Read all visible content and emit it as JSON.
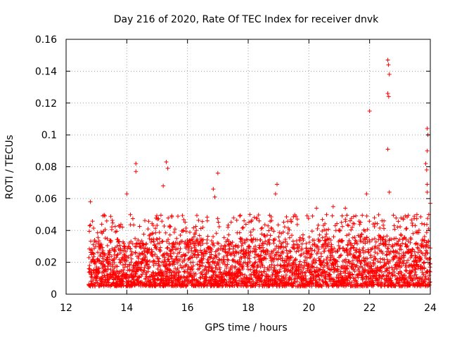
{
  "chart_data": {
    "type": "scatter",
    "title": "Day 216 of 2020, Rate Of TEC Index for receiver dnvk",
    "xlabel": "GPS time / hours",
    "ylabel": "ROTI / TECUs",
    "xlim": [
      12,
      24
    ],
    "ylim": [
      0,
      0.16
    ],
    "xticks": [
      12,
      14,
      16,
      18,
      20,
      22,
      24
    ],
    "xtick_labels": [
      "12",
      "14",
      "16",
      "18",
      "20",
      "22",
      "24"
    ],
    "yticks": [
      0,
      0.02,
      0.04,
      0.06,
      0.08,
      0.1,
      0.12,
      0.14,
      0.16
    ],
    "ytick_labels": [
      "0",
      "0.02",
      "0.04",
      "0.06",
      "0.08",
      "0.1",
      "0.12",
      "0.14",
      "0.16"
    ],
    "grid": true,
    "marker": "+",
    "color": "#ff0000",
    "series": [
      {
        "name": "ROTI",
        "x_range": [
          12.75,
          24.0
        ],
        "typical_range": [
          0.005,
          0.035
        ],
        "notable_points": [
          {
            "x": 12.8,
            "y": 0.058
          },
          {
            "x": 14.0,
            "y": 0.063
          },
          {
            "x": 14.3,
            "y": 0.082
          },
          {
            "x": 14.3,
            "y": 0.077
          },
          {
            "x": 15.3,
            "y": 0.083
          },
          {
            "x": 15.35,
            "y": 0.079
          },
          {
            "x": 15.2,
            "y": 0.068
          },
          {
            "x": 16.85,
            "y": 0.066
          },
          {
            "x": 16.9,
            "y": 0.061
          },
          {
            "x": 17.0,
            "y": 0.076
          },
          {
            "x": 18.95,
            "y": 0.069
          },
          {
            "x": 18.9,
            "y": 0.063
          },
          {
            "x": 20.25,
            "y": 0.054
          },
          {
            "x": 20.8,
            "y": 0.055
          },
          {
            "x": 21.2,
            "y": 0.054
          },
          {
            "x": 21.9,
            "y": 0.063
          },
          {
            "x": 22.0,
            "y": 0.115
          },
          {
            "x": 22.6,
            "y": 0.147
          },
          {
            "x": 22.62,
            "y": 0.144
          },
          {
            "x": 22.65,
            "y": 0.138
          },
          {
            "x": 22.6,
            "y": 0.126
          },
          {
            "x": 22.63,
            "y": 0.124
          },
          {
            "x": 22.6,
            "y": 0.091
          },
          {
            "x": 22.65,
            "y": 0.064
          },
          {
            "x": 23.9,
            "y": 0.104
          },
          {
            "x": 23.92,
            "y": 0.1
          },
          {
            "x": 23.9,
            "y": 0.09
          },
          {
            "x": 23.85,
            "y": 0.082
          },
          {
            "x": 23.88,
            "y": 0.078
          },
          {
            "x": 23.9,
            "y": 0.069
          },
          {
            "x": 23.9,
            "y": 0.064
          },
          {
            "x": 24.0,
            "y": 0.057
          }
        ]
      }
    ]
  }
}
